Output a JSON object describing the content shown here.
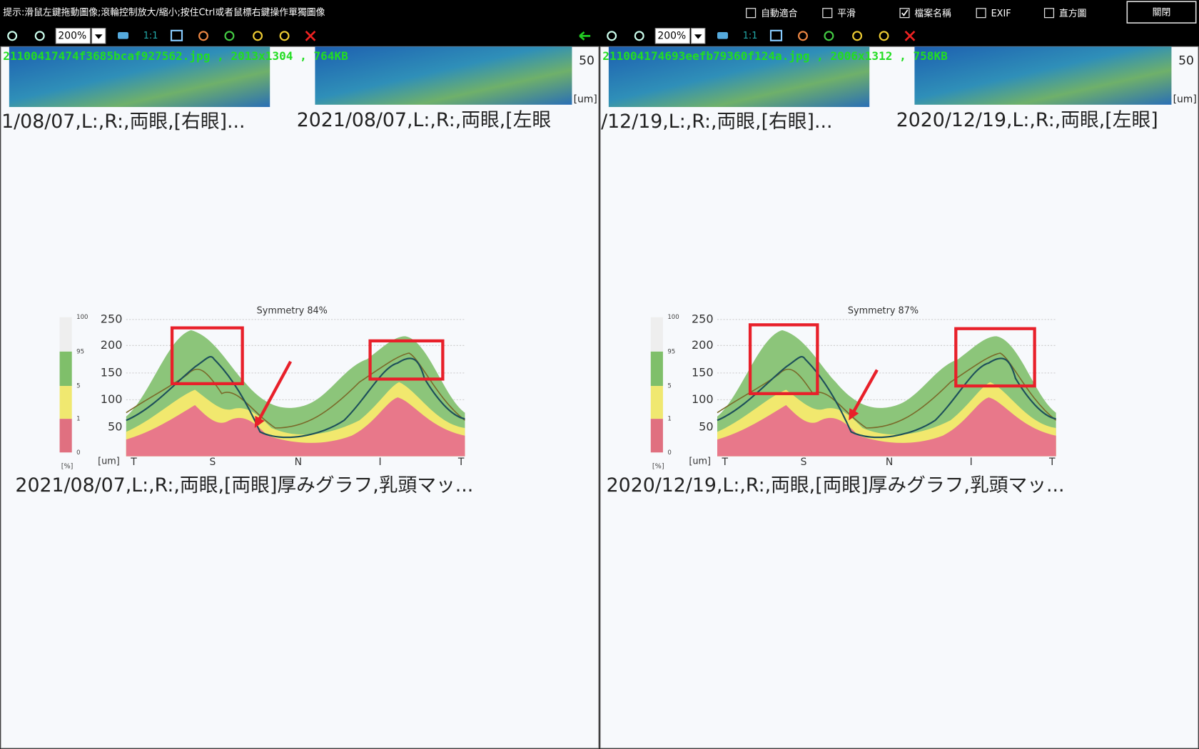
{
  "toolbar": {
    "hint": "提示:滑鼠左鍵拖動圖像;滾輪控制放大/縮小;按住Ctrl或者鼠標右鍵操作單獨圖像",
    "options": [
      {
        "label": "自動適合",
        "checked": false
      },
      {
        "label": "平滑",
        "checked": false
      },
      {
        "label": "檔案名稱",
        "checked": true
      },
      {
        "label": "EXIF",
        "checked": false
      },
      {
        "label": "直方圖",
        "checked": false
      }
    ],
    "close": "關閉"
  },
  "panels": [
    {
      "zoom": "200%",
      "actual_size": "1:1",
      "file_info": "21100417474f3685bcaf927562.jpg , 2013x1304 , 764KB",
      "image": {
        "top_scale": "50",
        "top_unit": "[um]",
        "captions_top": [
          "1/08/07,L:,R:,両眼,[右眼]...",
          "2021/08/07,L:,R:,両眼,[左眼"
        ],
        "chart": {
          "title": "Symmetry 84%",
          "y_labels": [
            250,
            200,
            150,
            100,
            50
          ],
          "percent_labels": [
            100,
            95,
            5,
            1,
            0
          ],
          "percent_unit": "[%]",
          "unit": "[um]",
          "x_labels": [
            "T",
            "S",
            "N",
            "I",
            "T"
          ]
        },
        "caption": "2021/08/07,L:,R:,両眼,[両眼]厚みグラフ,乳頭マッ..."
      }
    },
    {
      "zoom": "200%",
      "actual_size": "1:1",
      "file_info": "211004174693eefb79360f124a.jpg , 2006x1312 , 758KB",
      "image": {
        "top_scale": "50",
        "top_unit": "[um]",
        "captions_top": [
          "/12/19,L:,R:,両眼,[右眼]...",
          "2020/12/19,L:,R:,両眼,[左眼]"
        ],
        "chart": {
          "title": "Symmetry 87%",
          "y_labels": [
            250,
            200,
            150,
            100,
            50
          ],
          "percent_labels": [
            100,
            95,
            5,
            1,
            0
          ],
          "percent_unit": "[%]",
          "unit": "[um]",
          "x_labels": [
            "T",
            "S",
            "N",
            "I",
            "T"
          ]
        },
        "caption": "2020/12/19,L:,R:,両眼,[両眼]厚みグラフ,乳頭マッ..."
      }
    }
  ]
}
